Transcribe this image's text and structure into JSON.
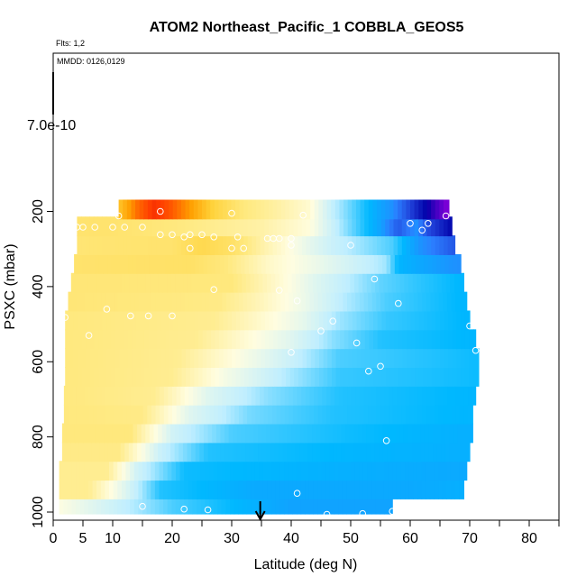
{
  "chart_data": {
    "type": "heatmap",
    "title": "ATOM2 Northeast_Pacific_1 COBBLA_GEOS5",
    "flights_label": "Flts: 1,2",
    "dates_label": "MMDD: 0126,0129",
    "xlabel": "Latitude (deg N)",
    "ylabel": "PSXC (mbar)",
    "xlim": [
      0,
      85
    ],
    "ylim": [
      1000,
      0
    ],
    "x_ticks": [
      0,
      5,
      10,
      20,
      30,
      40,
      50,
      60,
      70,
      80
    ],
    "y_ticks": [
      200,
      400,
      600,
      800,
      1000
    ],
    "scale_label": "7.0e-10",
    "arrow_latitude": 34.8,
    "color_scale": [
      "#7a00d6",
      "#0000a8",
      "#1f3fd8",
      "#2b7fff",
      "#00b8ff",
      "#bfeeff",
      "#fffde0",
      "#ffe980",
      "#ffd23a",
      "#ff9e00",
      "#ff3a00",
      "#c80000"
    ],
    "color_values_note": "",
    "rows": [
      {
        "p": 980,
        "x0": 1.0,
        "x1": 57.0,
        "stops": [
          [
            0,
            0.55
          ],
          [
            20,
            0.4
          ],
          [
            40,
            0.33
          ],
          [
            57,
            0.33
          ]
        ]
      },
      {
        "p": 940,
        "x0": 1.0,
        "x1": 69.0,
        "stops": [
          [
            0,
            0.62
          ],
          [
            6,
            0.62
          ],
          [
            12,
            0.5
          ],
          [
            18,
            0.38
          ],
          [
            35,
            0.34
          ],
          [
            60,
            0.34
          ],
          [
            69,
            0.35
          ]
        ]
      },
      {
        "p": 890,
        "x0": 1.0,
        "x1": 69.5,
        "stops": [
          [
            0,
            0.62
          ],
          [
            9,
            0.62
          ],
          [
            14,
            0.48
          ],
          [
            22,
            0.37
          ],
          [
            50,
            0.35
          ],
          [
            69,
            0.34
          ]
        ]
      },
      {
        "p": 840,
        "x0": 1.5,
        "x1": 70.0,
        "stops": [
          [
            0,
            0.63
          ],
          [
            11,
            0.63
          ],
          [
            18,
            0.47
          ],
          [
            26,
            0.38
          ],
          [
            50,
            0.36
          ],
          [
            70,
            0.35
          ]
        ]
      },
      {
        "p": 790,
        "x0": 1.5,
        "x1": 70.5,
        "stops": [
          [
            0,
            0.64
          ],
          [
            13,
            0.64
          ],
          [
            20,
            0.48
          ],
          [
            30,
            0.4
          ],
          [
            50,
            0.37
          ],
          [
            70,
            0.35
          ]
        ]
      },
      {
        "p": 740,
        "x0": 1.8,
        "x1": 70.5,
        "stops": [
          [
            0,
            0.64
          ],
          [
            15,
            0.63
          ],
          [
            23,
            0.5
          ],
          [
            33,
            0.42
          ],
          [
            47,
            0.38
          ],
          [
            70,
            0.36
          ]
        ]
      },
      {
        "p": 690,
        "x0": 1.8,
        "x1": 71.0,
        "stops": [
          [
            0,
            0.64
          ],
          [
            17,
            0.62
          ],
          [
            26,
            0.5
          ],
          [
            36,
            0.43
          ],
          [
            48,
            0.38
          ],
          [
            71,
            0.36
          ]
        ]
      },
      {
        "p": 640,
        "x0": 2.0,
        "x1": 71.5,
        "stops": [
          [
            0,
            0.64
          ],
          [
            20,
            0.62
          ],
          [
            29,
            0.53
          ],
          [
            39,
            0.45
          ],
          [
            48,
            0.39
          ],
          [
            71,
            0.37
          ]
        ]
      },
      {
        "p": 590,
        "x0": 2.0,
        "x1": 71.5,
        "stops": [
          [
            0,
            0.64
          ],
          [
            21,
            0.62
          ],
          [
            30,
            0.55
          ],
          [
            40,
            0.47
          ],
          [
            48,
            0.4
          ],
          [
            71,
            0.37
          ]
        ]
      },
      {
        "p": 540,
        "x0": 2.0,
        "x1": 71.0,
        "stops": [
          [
            0,
            0.64
          ],
          [
            24,
            0.62
          ],
          [
            32,
            0.56
          ],
          [
            40,
            0.5
          ],
          [
            47,
            0.43
          ],
          [
            55,
            0.38
          ],
          [
            71,
            0.36
          ]
        ]
      },
      {
        "p": 490,
        "x0": 2.0,
        "x1": 70.0,
        "stops": [
          [
            0,
            0.64
          ],
          [
            27,
            0.62
          ],
          [
            34,
            0.57
          ],
          [
            42,
            0.51
          ],
          [
            48,
            0.44
          ],
          [
            56,
            0.39
          ],
          [
            70,
            0.36
          ]
        ]
      },
      {
        "p": 440,
        "x0": 2.5,
        "x1": 69.5,
        "stops": [
          [
            0,
            0.65
          ],
          [
            28,
            0.63
          ],
          [
            35,
            0.58
          ],
          [
            42,
            0.52
          ],
          [
            49,
            0.45
          ],
          [
            56,
            0.4
          ],
          [
            69,
            0.36
          ]
        ]
      },
      {
        "p": 390,
        "x0": 3.0,
        "x1": 69.0,
        "stops": [
          [
            0,
            0.65
          ],
          [
            30,
            0.64
          ],
          [
            36,
            0.58
          ],
          [
            44,
            0.5
          ],
          [
            55,
            0.41
          ],
          [
            60,
            0.39
          ],
          [
            69,
            0.36
          ]
        ]
      },
      {
        "p": 340,
        "x0": 3.5,
        "x1": 68.5,
        "stops": [
          [
            0,
            0.66
          ],
          [
            23,
            0.67
          ],
          [
            29,
            0.64
          ],
          [
            36,
            0.57
          ],
          [
            44,
            0.52
          ],
          [
            56,
            0.44
          ],
          [
            58,
            0.36
          ],
          [
            68,
            0.3
          ]
        ]
      },
      {
        "p": 290,
        "x0": 4.0,
        "x1": 67.5,
        "stops": [
          [
            0,
            0.65
          ],
          [
            20,
            0.66
          ],
          [
            25,
            0.7
          ],
          [
            30,
            0.67
          ],
          [
            35,
            0.6
          ],
          [
            42,
            0.52
          ],
          [
            47,
            0.47
          ],
          [
            57,
            0.4
          ],
          [
            62,
            0.3
          ],
          [
            67,
            0.22
          ]
        ]
      },
      {
        "p": 240,
        "x0": 4.0,
        "x1": 67.0,
        "stops": [
          [
            0,
            0.66
          ],
          [
            10,
            0.66
          ],
          [
            20,
            0.64
          ],
          [
            35,
            0.6
          ],
          [
            43,
            0.55
          ],
          [
            48,
            0.45
          ],
          [
            55,
            0.33
          ],
          [
            58,
            0.22
          ],
          [
            61,
            0.3
          ],
          [
            63,
            0.2
          ],
          [
            67,
            0.1
          ]
        ]
      },
      {
        "p": 195,
        "x0": 11.0,
        "x1": 66.5,
        "stops": [
          [
            11,
            0.75
          ],
          [
            14,
            0.86
          ],
          [
            17,
            0.92
          ],
          [
            20,
            0.88
          ],
          [
            23,
            0.82
          ],
          [
            27,
            0.72
          ],
          [
            32,
            0.64
          ],
          [
            38,
            0.6
          ],
          [
            43,
            0.56
          ],
          [
            47,
            0.46
          ],
          [
            52,
            0.38
          ],
          [
            57,
            0.3
          ],
          [
            61,
            0.15
          ],
          [
            64,
            0.05
          ],
          [
            66,
            0.0
          ]
        ]
      }
    ],
    "points": [
      {
        "lat": 11,
        "p": 212
      },
      {
        "lat": 18,
        "p": 200
      },
      {
        "lat": 30,
        "p": 205
      },
      {
        "lat": 42,
        "p": 210
      },
      {
        "lat": 4,
        "p": 242
      },
      {
        "lat": 5,
        "p": 242
      },
      {
        "lat": 7,
        "p": 242
      },
      {
        "lat": 10,
        "p": 242
      },
      {
        "lat": 12,
        "p": 242
      },
      {
        "lat": 15,
        "p": 242
      },
      {
        "lat": 60,
        "p": 232
      },
      {
        "lat": 63,
        "p": 232
      },
      {
        "lat": 66,
        "p": 212
      },
      {
        "lat": 62,
        "p": 250
      },
      {
        "lat": 18,
        "p": 262
      },
      {
        "lat": 20,
        "p": 262
      },
      {
        "lat": 23,
        "p": 262
      },
      {
        "lat": 25,
        "p": 262
      },
      {
        "lat": 27,
        "p": 268
      },
      {
        "lat": 22,
        "p": 268
      },
      {
        "lat": 31,
        "p": 268
      },
      {
        "lat": 36,
        "p": 272
      },
      {
        "lat": 37,
        "p": 272
      },
      {
        "lat": 38,
        "p": 272
      },
      {
        "lat": 40,
        "p": 272
      },
      {
        "lat": 23,
        "p": 298
      },
      {
        "lat": 30,
        "p": 298
      },
      {
        "lat": 32,
        "p": 298
      },
      {
        "lat": 40,
        "p": 290
      },
      {
        "lat": 50,
        "p": 290
      },
      {
        "lat": 54,
        "p": 380
      },
      {
        "lat": 27,
        "p": 408
      },
      {
        "lat": 38,
        "p": 410
      },
      {
        "lat": 41,
        "p": 438
      },
      {
        "lat": 58,
        "p": 445
      },
      {
        "lat": 2,
        "p": 482
      },
      {
        "lat": 9,
        "p": 460
      },
      {
        "lat": 13,
        "p": 478
      },
      {
        "lat": 16,
        "p": 478
      },
      {
        "lat": 20,
        "p": 478
      },
      {
        "lat": 47,
        "p": 492
      },
      {
        "lat": 45,
        "p": 518
      },
      {
        "lat": 70,
        "p": 505
      },
      {
        "lat": 6,
        "p": 530
      },
      {
        "lat": 51,
        "p": 550
      },
      {
        "lat": 71,
        "p": 570
      },
      {
        "lat": 40,
        "p": 575
      },
      {
        "lat": 55,
        "p": 612
      },
      {
        "lat": 53,
        "p": 625
      },
      {
        "lat": 56,
        "p": 810
      },
      {
        "lat": 70,
        "p": 925
      },
      {
        "lat": 41,
        "p": 950
      },
      {
        "lat": 15,
        "p": 985
      },
      {
        "lat": 22,
        "p": 992
      },
      {
        "lat": 26,
        "p": 994
      },
      {
        "lat": 46,
        "p": 1006
      },
      {
        "lat": 52,
        "p": 1004
      },
      {
        "lat": 57,
        "p": 998
      }
    ]
  }
}
